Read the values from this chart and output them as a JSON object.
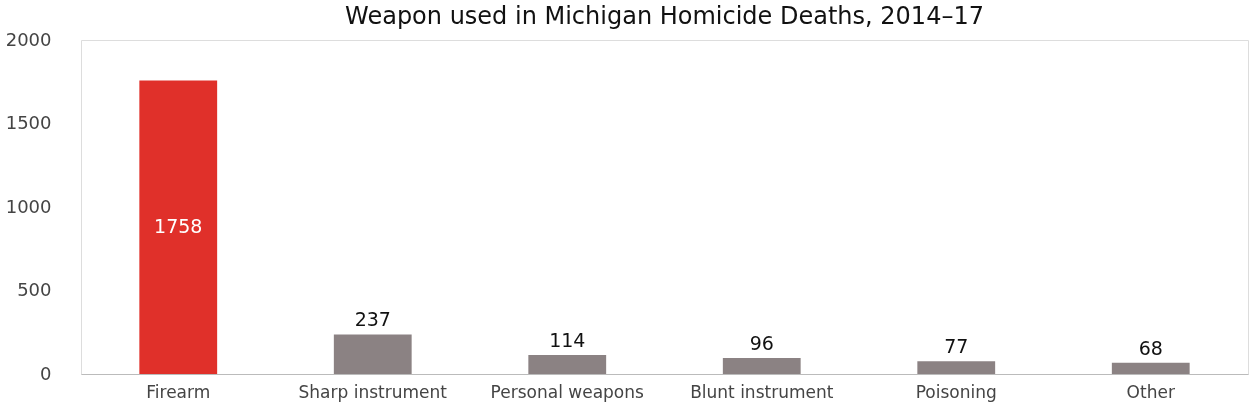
{
  "chart_data": {
    "type": "bar",
    "title": "Weapon used in Michigan Homicide Deaths, 2014–17",
    "categories": [
      "Firearm",
      "Sharp instrument",
      "Personal weapons",
      "Blunt instrument",
      "Poisoning",
      "Other"
    ],
    "values": [
      1758,
      237,
      114,
      96,
      77,
      68
    ],
    "colors": [
      "#e0302a",
      "#8b8283",
      "#8b8283",
      "#8b8283",
      "#8b8283",
      "#8b8283"
    ],
    "ylim": [
      0,
      2000
    ],
    "yticks": [
      0,
      500,
      1000,
      1500,
      2000
    ],
    "grid": false,
    "data_labels": true
  }
}
